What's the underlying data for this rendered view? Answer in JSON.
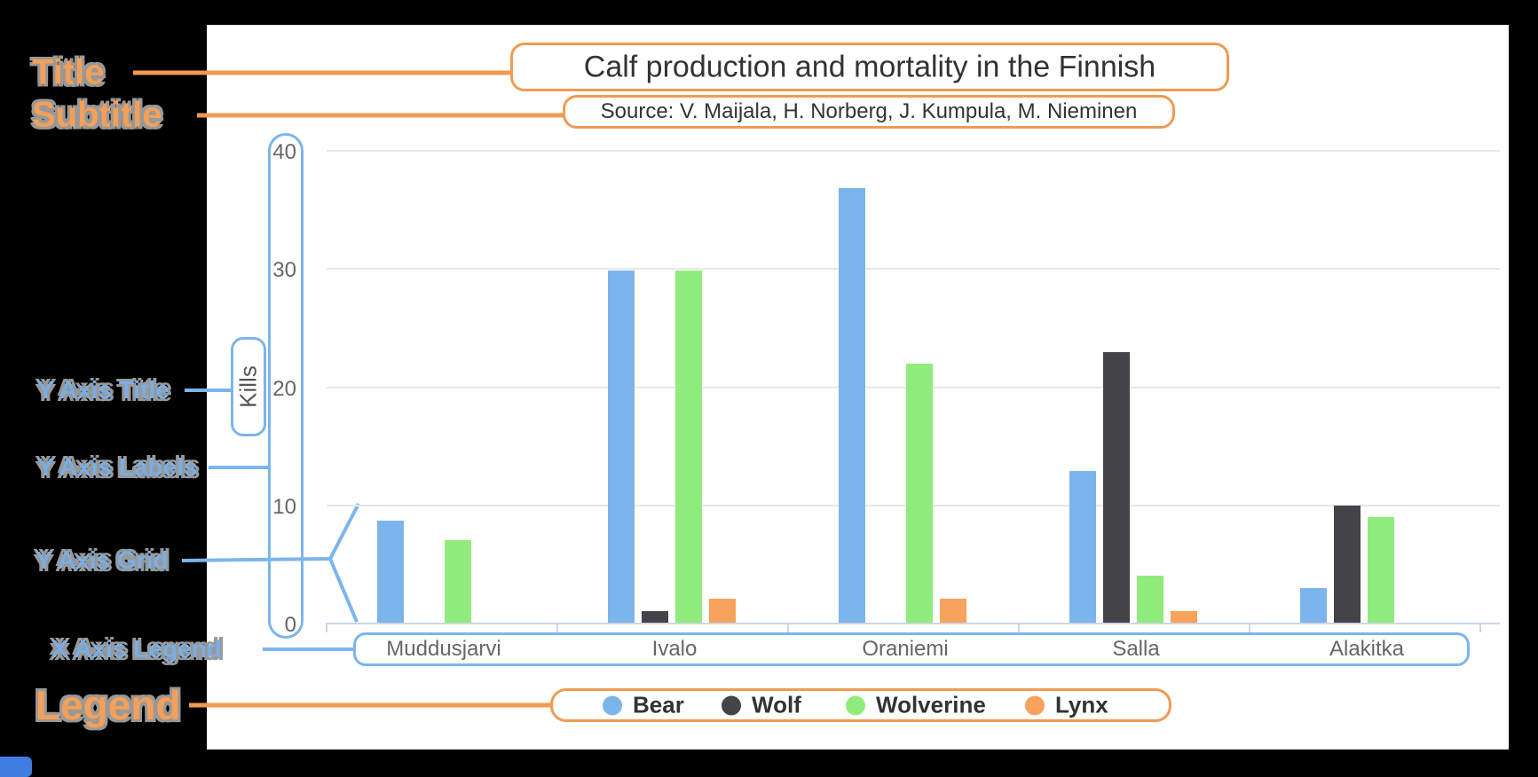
{
  "annotations": {
    "title_label": "Title",
    "subtitle_label": "Subtitle",
    "y_axis_title_label": "Y Axis Title",
    "y_axis_labels_label": "Y Axis Labels",
    "y_axis_grid_label": "Y Axis Grid",
    "x_axis_legend_label": "X Axis Legend",
    "legend_label": "Legend",
    "orange_accent": "#ef9b51",
    "blue_accent": "#7cb5ec"
  },
  "chart_data": {
    "type": "bar",
    "title": "Calf production and mortality in the Finnish",
    "subtitle": "Source: V. Maijala, H. Norberg, J. Kumpula, M. Nieminen",
    "ylabel": "Kills",
    "xlabel": "",
    "categories": [
      "Muddusjarvi",
      "Ivalo",
      "Oraniemi",
      "Salla",
      "Alakitka"
    ],
    "series": [
      {
        "name": "Bear",
        "color": "#7cb5ec",
        "values": [
          8.6,
          29.8,
          36.8,
          12.8,
          2.9
        ]
      },
      {
        "name": "Wolf",
        "color": "#434348",
        "values": [
          0,
          1,
          0,
          22.9,
          9.9
        ]
      },
      {
        "name": "Wolverine",
        "color": "#90ed7d",
        "values": [
          7,
          29.8,
          21.9,
          4,
          8.9
        ]
      },
      {
        "name": "Lynx",
        "color": "#f7a35c",
        "values": [
          0,
          2,
          2,
          1,
          0
        ]
      }
    ],
    "ylim": [
      0,
      40
    ],
    "yticks": [
      0,
      10,
      20,
      30,
      40
    ],
    "grid": true,
    "legend_position": "bottom",
    "axis_text_color": "#666",
    "grid_color": "#e7e7e7",
    "axis_line_color": "#ccd6eb"
  }
}
